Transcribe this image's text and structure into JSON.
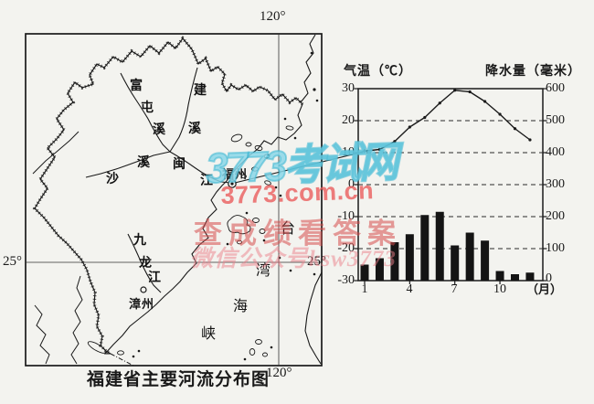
{
  "figure": {
    "map": {
      "caption": "福建省主要河流分布图",
      "longitude_top": "120°",
      "longitude_bottom": "120°",
      "latitude_left": "25°",
      "latitude_right": "25°",
      "river_labels": [
        "富屯溪",
        "建溪",
        "沙溪",
        "闽江",
        "九龙江"
      ],
      "city_labels": [
        "福州",
        "漳州"
      ],
      "sea_label": "台湾海峡"
    }
  },
  "chart_data": {
    "type": "bar+line",
    "categories": [
      1,
      2,
      3,
      4,
      5,
      6,
      7,
      8,
      9,
      10,
      11,
      12
    ],
    "series": [
      {
        "name": "气温",
        "type": "line",
        "axis": "left",
        "unit": "℃",
        "values": [
          10.5,
          11,
          13.5,
          18,
          21,
          25.5,
          29.5,
          29,
          26,
          22,
          17.5,
          14
        ]
      },
      {
        "name": "降水量",
        "type": "bar",
        "axis": "right",
        "unit": "毫米",
        "values": [
          50,
          70,
          120,
          145,
          205,
          215,
          110,
          150,
          125,
          30,
          20,
          25
        ]
      }
    ],
    "left_axis": {
      "label": "气温（℃）",
      "ticks": [
        30,
        20,
        10,
        0,
        -10,
        -20,
        -30
      ],
      "range": [
        -30,
        30
      ]
    },
    "right_axis": {
      "label": "降水量（毫米）",
      "ticks": [
        600,
        500,
        400,
        300,
        200,
        100,
        0
      ],
      "range": [
        0,
        600
      ]
    },
    "x_axis": {
      "tick_labels": [
        1,
        4,
        7,
        10
      ],
      "unit": "（月）"
    },
    "grid": "dashed horizontal lines every 10℃ / 100mm",
    "legend": "none"
  },
  "watermarks": {
    "site": "3773考试网",
    "url": "3773.com.cn",
    "slogan": "查成绩看答案",
    "wechat": "微信公众号ksw3773"
  }
}
